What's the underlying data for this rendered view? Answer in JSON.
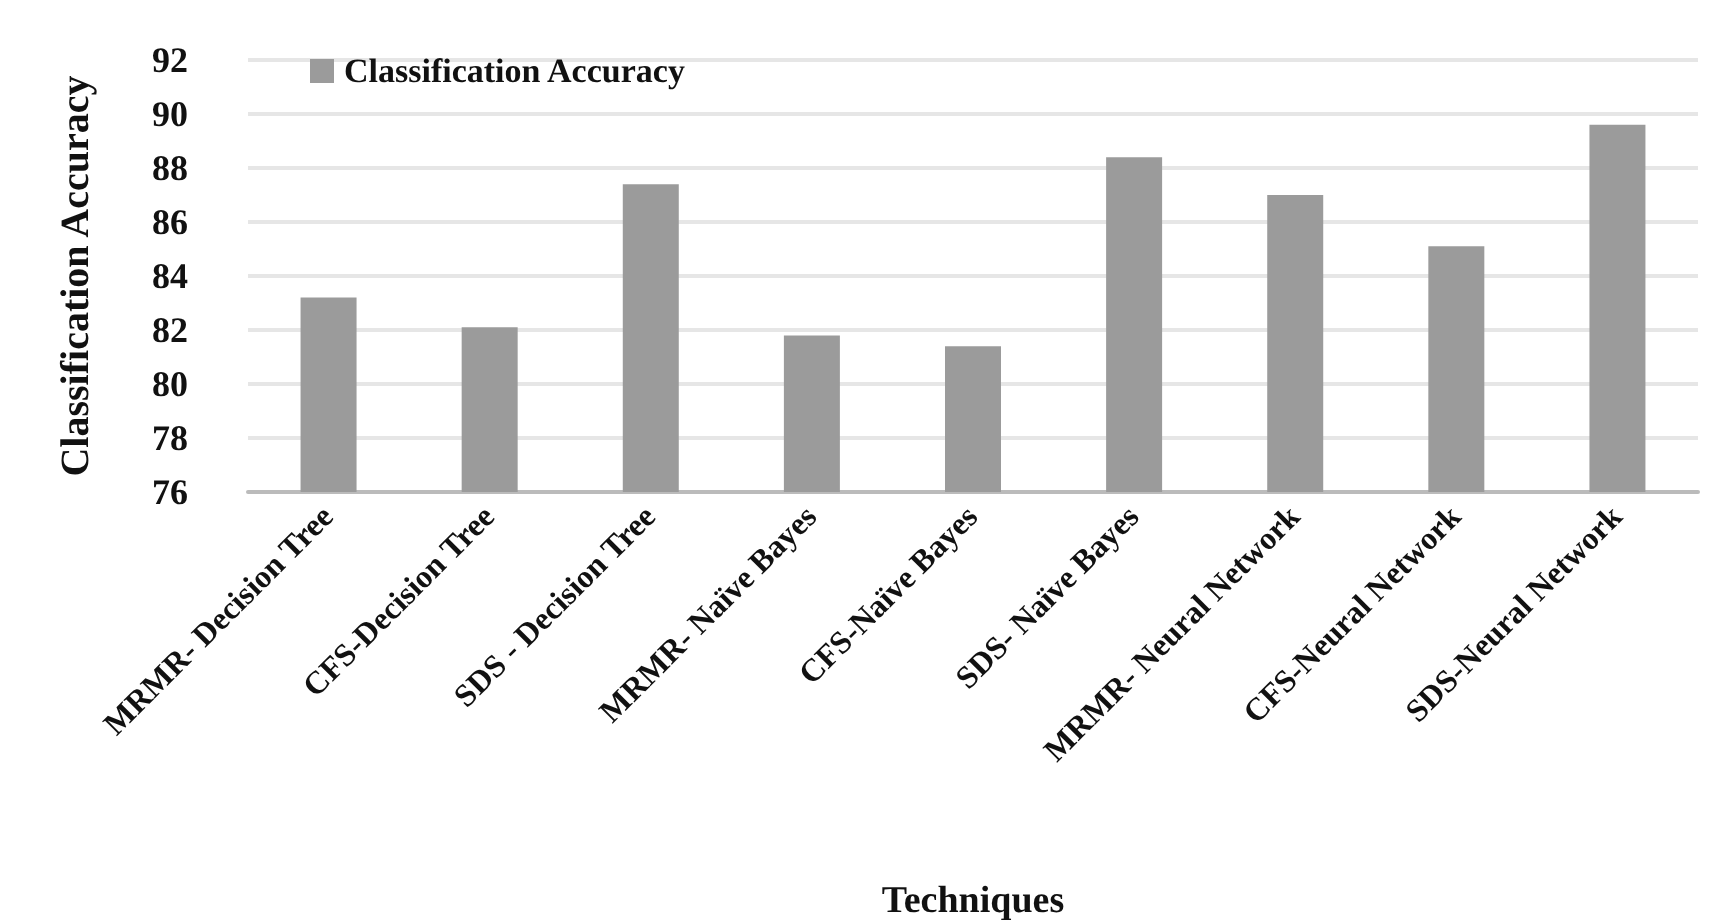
{
  "chart_data": {
    "type": "bar",
    "xlabel": "Techniques",
    "ylabel": "Classification Accuracy",
    "categories": [
      "MRMR- Decision Tree",
      "CFS-Decision Tree",
      "SDS - Decision Tree",
      "MRMR- Naïve Bayes",
      "CFS-Naïve Bayes",
      "SDS- Naïve Bayes",
      "MRMR- Neural Network",
      "CFS-Neural Network",
      "SDS-Neural Network"
    ],
    "series": [
      {
        "name": "Classification Accuracy",
        "color": "#9b9b9b",
        "values": [
          83.2,
          82.1,
          87.4,
          81.8,
          81.4,
          88.4,
          87.0,
          85.1,
          89.6
        ]
      }
    ],
    "ylim": [
      76,
      92
    ],
    "yticks": [
      76,
      78,
      80,
      82,
      84,
      86,
      88,
      90,
      92
    ],
    "grid": "y",
    "legend": "top left"
  }
}
